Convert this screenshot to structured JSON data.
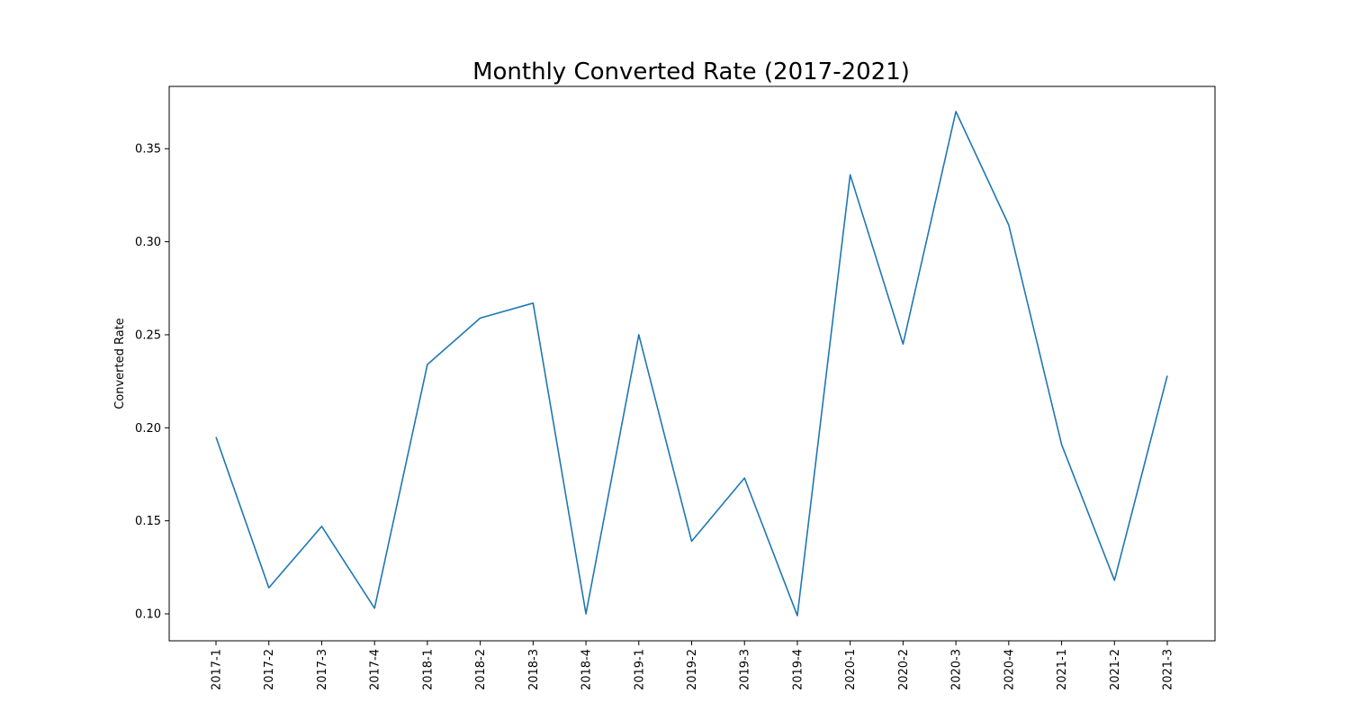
{
  "chart_data": {
    "type": "line",
    "title": "Monthly Converted Rate (2017-2021)",
    "xlabel": "",
    "ylabel": "Converted Rate",
    "categories": [
      "2017-1",
      "2017-2",
      "2017-3",
      "2017-4",
      "2018-1",
      "2018-2",
      "2018-3",
      "2018-4",
      "2019-1",
      "2019-2",
      "2019-3",
      "2019-4",
      "2020-1",
      "2020-2",
      "2020-3",
      "2020-4",
      "2021-1",
      "2021-2",
      "2021-3"
    ],
    "series": [
      {
        "values": [
          0.195,
          0.114,
          0.147,
          0.103,
          0.234,
          0.259,
          0.267,
          0.1,
          0.25,
          0.139,
          0.173,
          0.099,
          0.336,
          0.245,
          0.37,
          0.309,
          0.191,
          0.118,
          0.228
        ],
        "color": "#1f77b4"
      }
    ],
    "yticks": [
      "0.10",
      "0.15",
      "0.20",
      "0.25",
      "0.30",
      "0.35"
    ],
    "ylim": [
      0.0855,
      0.3835
    ],
    "grid": false,
    "legend": "none"
  }
}
